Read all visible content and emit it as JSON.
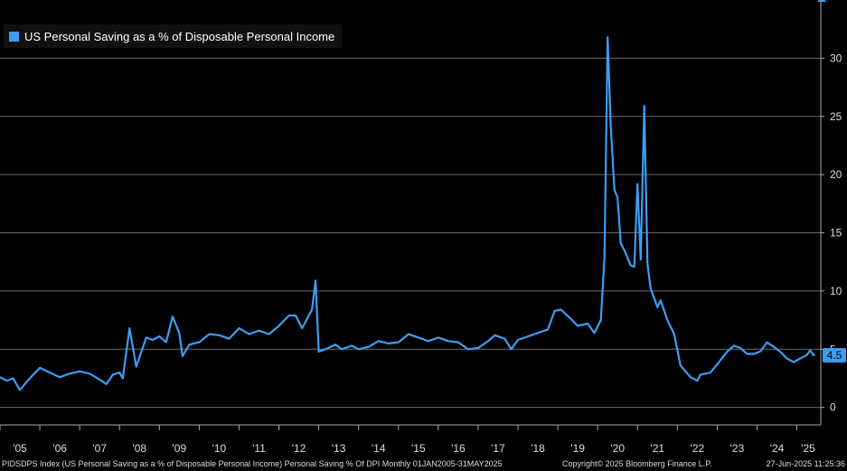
{
  "legend": {
    "label": "US Personal Saving as a % of Disposable Personal Income",
    "color": "#3d9df2"
  },
  "footer": {
    "left": "PIDSDPS Index (US Personal Saving as a % of Disposable Personal Income) Personal Saving % Of DPI  Monthly 01JAN2005-31MAY2025",
    "center": "Copyright© 2025 Bloomberg Finance L.P.",
    "right": "27-Jun-2025 11:25:36"
  },
  "last_value_label": "4.5",
  "chart_data": {
    "type": "line",
    "title": "",
    "xlabel": "",
    "ylabel": "",
    "ylim": [
      -1.5,
      35
    ],
    "yticks": [
      0,
      5,
      10,
      15,
      20,
      25,
      30
    ],
    "xlim": [
      2005.0,
      2025.6
    ],
    "xtick_labels": [
      "'05",
      "'06",
      "'07",
      "'08",
      "'09",
      "'10",
      "'11",
      "'12",
      "'13",
      "'14",
      "'15",
      "'16",
      "'17",
      "'18",
      "'19",
      "'20",
      "'21",
      "'22",
      "'23",
      "'24",
      "'25"
    ],
    "grid": true,
    "legend_position": "top-left",
    "series": [
      {
        "name": "US Personal Saving as a % of Disposable Personal Income",
        "color": "#3d9df2",
        "points": [
          [
            2005.0,
            2.6
          ],
          [
            2005.17,
            2.3
          ],
          [
            2005.33,
            2.5
          ],
          [
            2005.5,
            1.5
          ],
          [
            2005.67,
            2.2
          ],
          [
            2005.83,
            2.8
          ],
          [
            2006.0,
            3.4
          ],
          [
            2006.25,
            3.0
          ],
          [
            2006.5,
            2.6
          ],
          [
            2006.75,
            2.9
          ],
          [
            2007.0,
            3.1
          ],
          [
            2007.25,
            2.9
          ],
          [
            2007.5,
            2.4
          ],
          [
            2007.67,
            2.0
          ],
          [
            2007.83,
            2.8
          ],
          [
            2008.0,
            3.0
          ],
          [
            2008.08,
            2.5
          ],
          [
            2008.25,
            6.8
          ],
          [
            2008.42,
            3.5
          ],
          [
            2008.67,
            6.0
          ],
          [
            2008.83,
            5.8
          ],
          [
            2009.0,
            6.1
          ],
          [
            2009.17,
            5.6
          ],
          [
            2009.33,
            7.8
          ],
          [
            2009.5,
            6.4
          ],
          [
            2009.58,
            4.4
          ],
          [
            2009.75,
            5.4
          ],
          [
            2010.0,
            5.6
          ],
          [
            2010.25,
            6.3
          ],
          [
            2010.5,
            6.2
          ],
          [
            2010.75,
            5.9
          ],
          [
            2011.0,
            6.8
          ],
          [
            2011.25,
            6.3
          ],
          [
            2011.5,
            6.6
          ],
          [
            2011.75,
            6.3
          ],
          [
            2012.0,
            7.0
          ],
          [
            2012.25,
            7.9
          ],
          [
            2012.42,
            7.9
          ],
          [
            2012.58,
            6.8
          ],
          [
            2012.83,
            8.4
          ],
          [
            2012.92,
            10.9
          ],
          [
            2013.0,
            4.8
          ],
          [
            2013.17,
            5.0
          ],
          [
            2013.42,
            5.4
          ],
          [
            2013.58,
            5.0
          ],
          [
            2013.83,
            5.3
          ],
          [
            2014.0,
            5.0
          ],
          [
            2014.25,
            5.2
          ],
          [
            2014.5,
            5.7
          ],
          [
            2014.75,
            5.5
          ],
          [
            2015.0,
            5.6
          ],
          [
            2015.25,
            6.3
          ],
          [
            2015.5,
            6.0
          ],
          [
            2015.75,
            5.7
          ],
          [
            2016.0,
            6.0
          ],
          [
            2016.25,
            5.7
          ],
          [
            2016.5,
            5.6
          ],
          [
            2016.75,
            5.0
          ],
          [
            2017.0,
            5.1
          ],
          [
            2017.25,
            5.7
          ],
          [
            2017.42,
            6.2
          ],
          [
            2017.67,
            5.9
          ],
          [
            2017.83,
            5.0
          ],
          [
            2018.0,
            5.8
          ],
          [
            2018.25,
            6.1
          ],
          [
            2018.5,
            6.4
          ],
          [
            2018.75,
            6.7
          ],
          [
            2018.92,
            8.3
          ],
          [
            2019.08,
            8.4
          ],
          [
            2019.33,
            7.6
          ],
          [
            2019.5,
            7.0
          ],
          [
            2019.75,
            7.2
          ],
          [
            2019.92,
            6.4
          ],
          [
            2020.08,
            7.5
          ],
          [
            2020.17,
            12.9
          ],
          [
            2020.25,
            31.8
          ],
          [
            2020.33,
            24.1
          ],
          [
            2020.42,
            18.7
          ],
          [
            2020.5,
            18.0
          ],
          [
            2020.58,
            14.1
          ],
          [
            2020.67,
            13.5
          ],
          [
            2020.83,
            12.2
          ],
          [
            2020.92,
            12.1
          ],
          [
            2021.0,
            19.2
          ],
          [
            2021.08,
            12.7
          ],
          [
            2021.17,
            25.9
          ],
          [
            2021.25,
            12.3
          ],
          [
            2021.33,
            10.2
          ],
          [
            2021.5,
            8.6
          ],
          [
            2021.58,
            9.2
          ],
          [
            2021.75,
            7.5
          ],
          [
            2021.92,
            6.3
          ],
          [
            2022.08,
            3.6
          ],
          [
            2022.33,
            2.6
          ],
          [
            2022.5,
            2.3
          ],
          [
            2022.58,
            2.8
          ],
          [
            2022.83,
            3.0
          ],
          [
            2023.0,
            3.7
          ],
          [
            2023.25,
            4.8
          ],
          [
            2023.42,
            5.3
          ],
          [
            2023.58,
            5.1
          ],
          [
            2023.75,
            4.6
          ],
          [
            2023.92,
            4.6
          ],
          [
            2024.08,
            4.8
          ],
          [
            2024.25,
            5.6
          ],
          [
            2024.42,
            5.2
          ],
          [
            2024.58,
            4.8
          ],
          [
            2024.75,
            4.2
          ],
          [
            2024.92,
            3.9
          ],
          [
            2025.08,
            4.2
          ],
          [
            2025.25,
            4.5
          ],
          [
            2025.33,
            4.9
          ],
          [
            2025.42,
            4.5
          ]
        ]
      }
    ]
  }
}
